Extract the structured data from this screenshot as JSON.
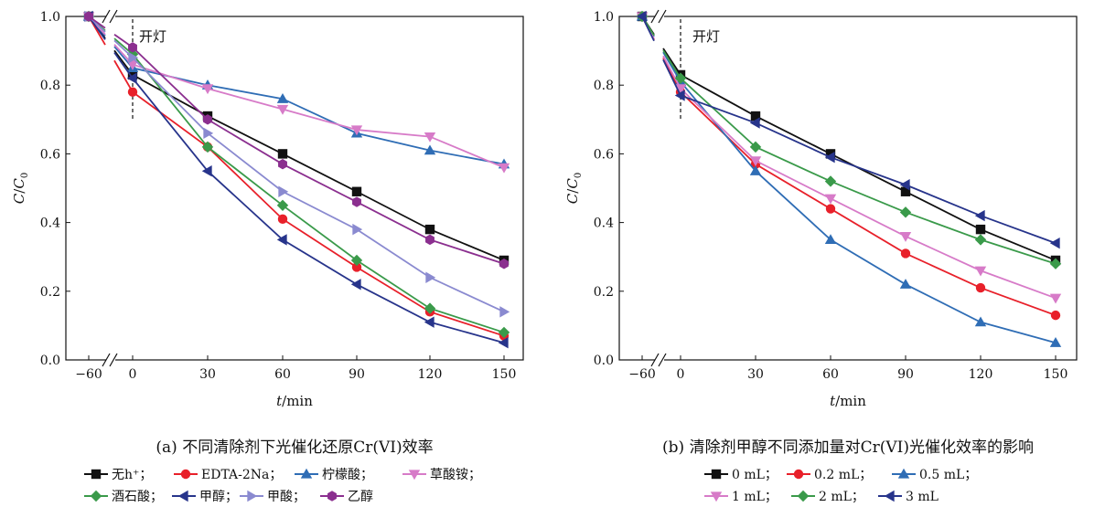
{
  "colors": {
    "black": "#111111",
    "red": "#e8202a",
    "blue": "#2f6db5",
    "pink": "#d77bc8",
    "green": "#3a9a4a",
    "navy": "#27348b",
    "lavender": "#8a8ad0",
    "purple": "#8b2f8f"
  },
  "chart_data": [
    {
      "type": "line",
      "panel": "a",
      "caption": "(a) 不同清除剂下光催化还原Cr(VI)效率",
      "xlabel_italic": "t",
      "xlabel_rest": "/min",
      "ylabel_italic_1": "C",
      "ylabel_sep": "/",
      "ylabel_italic_2": "C",
      "ylabel_sub": "0",
      "annotation": "开灯",
      "xticks": [
        "−60",
        "0",
        "30",
        "60",
        "90",
        "120",
        "150"
      ],
      "yticks": [
        "0.0",
        "0.2",
        "0.4",
        "0.6",
        "0.8",
        "1.0"
      ],
      "ylim": [
        0,
        1.0
      ],
      "x": [
        -60,
        0,
        30,
        60,
        90,
        120,
        150
      ],
      "series": [
        {
          "name": "无h⁺",
          "color": "black",
          "marker": "square",
          "values": [
            1.0,
            0.83,
            0.71,
            0.6,
            0.49,
            0.38,
            0.29
          ]
        },
        {
          "name": "EDTA-2Na",
          "color": "red",
          "marker": "circle",
          "values": [
            1.0,
            0.78,
            0.62,
            0.41,
            0.27,
            0.14,
            0.07
          ]
        },
        {
          "name": "柠檬酸",
          "color": "blue",
          "marker": "triangle-up",
          "values": [
            1.0,
            0.85,
            0.8,
            0.76,
            0.66,
            0.61,
            0.57
          ]
        },
        {
          "name": "草酸铵",
          "color": "pink",
          "marker": "triangle-down",
          "values": [
            1.0,
            0.86,
            0.79,
            0.73,
            0.67,
            0.65,
            0.56
          ]
        },
        {
          "name": "酒石酸",
          "color": "green",
          "marker": "diamond",
          "values": [
            1.0,
            0.89,
            0.62,
            0.45,
            0.29,
            0.15,
            0.08
          ]
        },
        {
          "name": "甲醇",
          "color": "navy",
          "marker": "triangle-left",
          "values": [
            1.0,
            0.82,
            0.55,
            0.35,
            0.22,
            0.11,
            0.05
          ]
        },
        {
          "name": "甲酸",
          "color": "lavender",
          "marker": "triangle-right",
          "values": [
            1.0,
            0.88,
            0.66,
            0.49,
            0.38,
            0.24,
            0.14
          ]
        },
        {
          "name": "乙醇",
          "color": "purple",
          "marker": "hexagon",
          "values": [
            1.0,
            0.91,
            0.7,
            0.57,
            0.46,
            0.35,
            0.28
          ]
        }
      ],
      "legend_rows": [
        [
          "无h⁺；",
          "EDTA-2Na；",
          "柠檬酸；",
          "草酸铵；"
        ],
        [
          "酒石酸；",
          "甲醇；",
          "甲酸；",
          "乙醇"
        ]
      ]
    },
    {
      "type": "line",
      "panel": "b",
      "caption": "(b) 清除剂甲醇不同添加量对Cr(VI)光催化效率的影响",
      "xlabel_italic": "t",
      "xlabel_rest": "/min",
      "ylabel_italic_1": "C",
      "ylabel_sep": "/",
      "ylabel_italic_2": "C",
      "ylabel_sub": "0",
      "annotation": "开灯",
      "xticks": [
        "−60",
        "0",
        "30",
        "60",
        "90",
        "120",
        "150"
      ],
      "yticks": [
        "0.0",
        "0.2",
        "0.4",
        "0.6",
        "0.8",
        "1.0"
      ],
      "ylim": [
        0,
        1.0
      ],
      "x": [
        -60,
        0,
        30,
        60,
        90,
        120,
        150
      ],
      "series": [
        {
          "name": "0 mL",
          "color": "black",
          "marker": "square",
          "values": [
            1.0,
            0.83,
            0.71,
            0.6,
            0.49,
            0.38,
            0.29
          ]
        },
        {
          "name": "0.2 mL",
          "color": "red",
          "marker": "circle",
          "values": [
            1.0,
            0.78,
            0.57,
            0.44,
            0.31,
            0.21,
            0.13
          ]
        },
        {
          "name": "0.5 mL",
          "color": "blue",
          "marker": "triangle-up",
          "values": [
            1.0,
            0.81,
            0.55,
            0.35,
            0.22,
            0.11,
            0.05
          ]
        },
        {
          "name": "1 mL",
          "color": "pink",
          "marker": "triangle-down",
          "values": [
            1.0,
            0.79,
            0.58,
            0.47,
            0.36,
            0.26,
            0.18
          ]
        },
        {
          "name": "2 mL",
          "color": "green",
          "marker": "diamond",
          "values": [
            1.0,
            0.82,
            0.62,
            0.52,
            0.43,
            0.35,
            0.28
          ]
        },
        {
          "name": "3 mL",
          "color": "navy",
          "marker": "triangle-left",
          "values": [
            1.0,
            0.77,
            0.69,
            0.59,
            0.51,
            0.42,
            0.34
          ]
        }
      ],
      "legend_rows": [
        [
          "0 mL；",
          "0.2 mL；",
          "0.5 mL；"
        ],
        [
          "1 mL；",
          "2 mL；",
          "3 mL"
        ]
      ]
    }
  ]
}
